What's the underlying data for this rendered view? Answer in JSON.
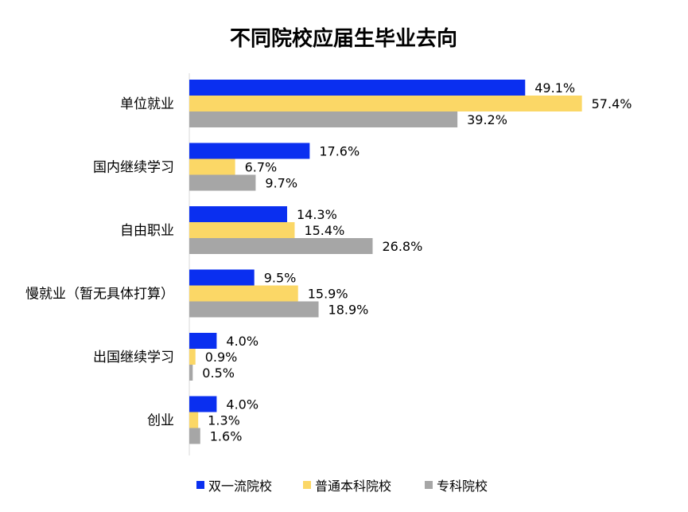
{
  "chart_data": {
    "type": "bar",
    "orientation": "horizontal",
    "title": "不同院校应届生毕业去向",
    "categories": [
      "单位就业",
      "国内继续学习",
      "自由职业",
      "慢就业（暂无具体打算）",
      "出国继续学习",
      "创业"
    ],
    "series": [
      {
        "name": "双一流院校",
        "color": "#0a2ff0",
        "values": [
          49.1,
          17.6,
          14.3,
          9.5,
          4.0,
          4.0
        ],
        "labels": [
          "49.1%",
          "17.6%",
          "14.3%",
          "9.5%",
          "4.0%",
          "4.0%"
        ]
      },
      {
        "name": "普通本科院校",
        "color": "#fbd766",
        "values": [
          57.4,
          6.7,
          15.4,
          15.9,
          0.9,
          1.3
        ],
        "labels": [
          "57.4%",
          "6.7%",
          "15.4%",
          "15.9%",
          "0.9%",
          "1.3%"
        ]
      },
      {
        "name": "专科院校",
        "color": "#a6a6a6",
        "values": [
          39.2,
          9.7,
          26.8,
          18.9,
          0.5,
          1.6
        ],
        "labels": [
          "39.2%",
          "9.7%",
          "26.8%",
          "18.9%",
          "0.5%",
          "1.6%"
        ]
      }
    ],
    "xlim": [
      0,
      60
    ],
    "grid": false,
    "legend_position": "bottom"
  }
}
